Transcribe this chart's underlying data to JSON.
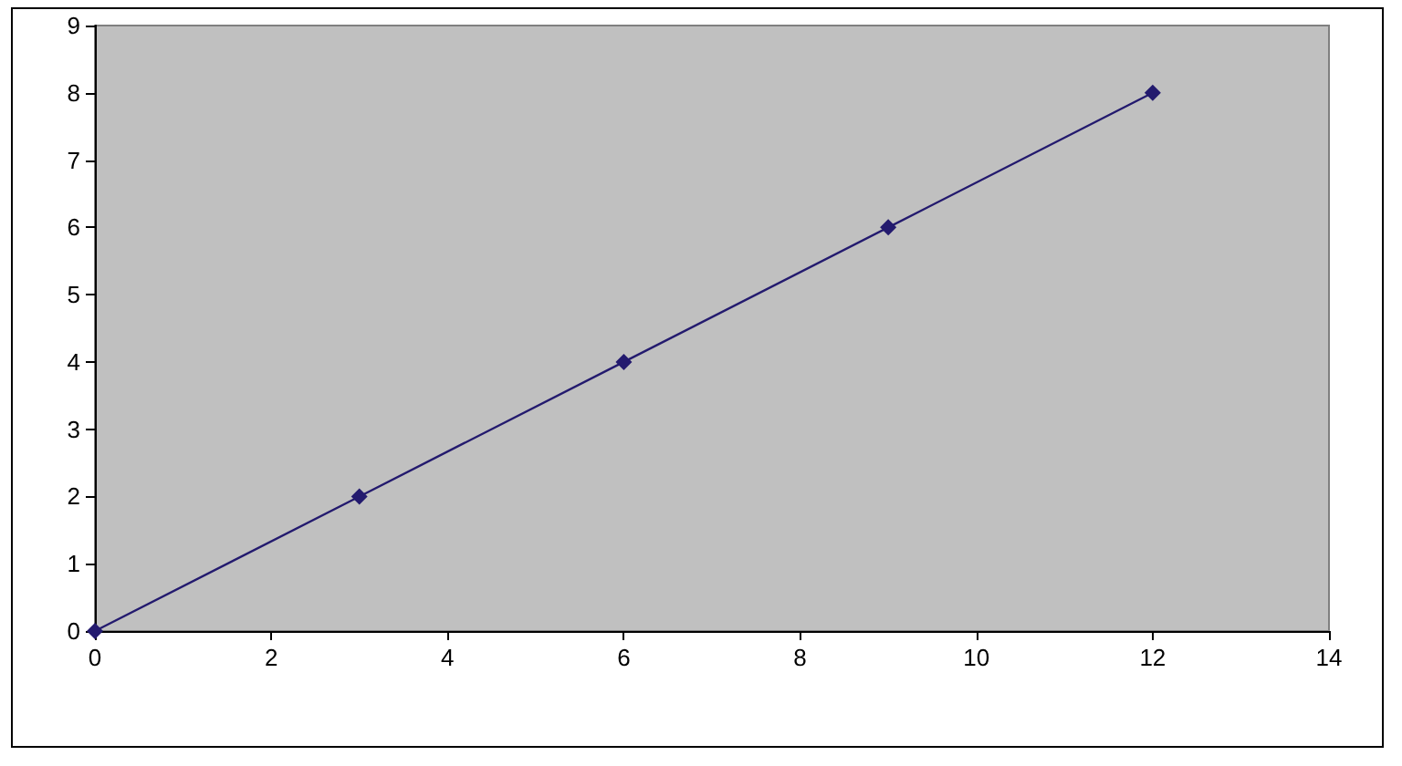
{
  "chart_data": {
    "type": "line",
    "x": [
      0,
      3,
      6,
      9,
      12
    ],
    "series": [
      {
        "color": "#231a6e",
        "values": [
          0,
          2,
          4,
          6,
          8
        ]
      }
    ],
    "xlim": [
      0,
      14
    ],
    "xticks": [
      0,
      2,
      4,
      6,
      8,
      10,
      12,
      14
    ],
    "ylim": [
      0,
      9
    ],
    "yticks": [
      0,
      1,
      2,
      3,
      4,
      5,
      6,
      7,
      8,
      9
    ],
    "grid": false,
    "marker": "diamond",
    "line_style": "solid"
  }
}
